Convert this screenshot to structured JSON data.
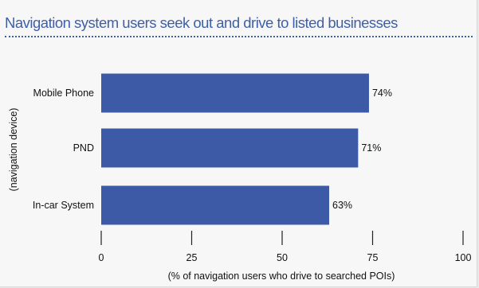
{
  "header": {
    "title": "Navigation system users seek out and drive to listed businesses"
  },
  "colors": {
    "accent": "#3e5fa8",
    "bar": "#3d5aa6"
  },
  "chart_data": {
    "type": "bar",
    "orientation": "horizontal",
    "title": "Navigation system users seek out and drive to listed businesses",
    "xlabel": "(% of navigation users who drive to searched POIs)",
    "ylabel": "(navigation device)",
    "categories": [
      "Mobile Phone",
      "PND",
      "In-car System"
    ],
    "values": [
      74,
      71,
      63
    ],
    "value_labels": [
      "74%",
      "71%",
      "63%"
    ],
    "xlim": [
      0,
      100
    ],
    "xticks": [
      0,
      25,
      50,
      75,
      100
    ],
    "grid": false,
    "legend": "none"
  }
}
